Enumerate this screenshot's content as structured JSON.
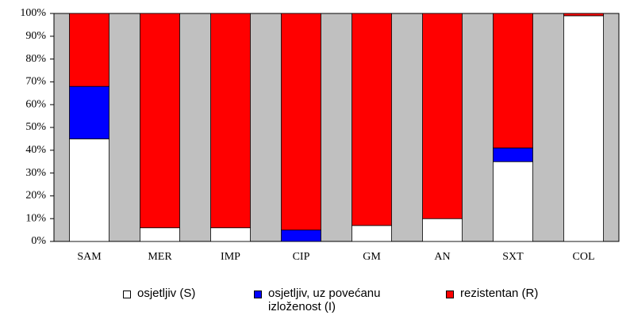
{
  "chart_data": {
    "type": "stacked_bar",
    "categories": [
      "SAM",
      "MER",
      "IMP",
      "CIP",
      "GM",
      "AN",
      "SXT",
      "COL"
    ],
    "series": [
      {
        "name": "osjetljiv (S)",
        "color": "#ffffff",
        "values": [
          45,
          6,
          6,
          0,
          7,
          10,
          35,
          99
        ]
      },
      {
        "name": "osjetljiv, uz povećanu izloženost (I)",
        "color": "#0000ff",
        "values": [
          23,
          0,
          0,
          5,
          0,
          0,
          6,
          0
        ]
      },
      {
        "name": "rezistentan (R)",
        "color": "#ff0000",
        "values": [
          32,
          94,
          94,
          95,
          93,
          90,
          59,
          1
        ]
      }
    ],
    "ylim": [
      0,
      100
    ],
    "yticks": [
      {
        "value": 0,
        "label": "0%"
      },
      {
        "value": 10,
        "label": "10%"
      },
      {
        "value": 20,
        "label": "20%"
      },
      {
        "value": 30,
        "label": "30%"
      },
      {
        "value": 40,
        "label": "40%"
      },
      {
        "value": 50,
        "label": "50%"
      },
      {
        "value": 60,
        "label": "60%"
      },
      {
        "value": 70,
        "label": "70%"
      },
      {
        "value": 80,
        "label": "80%"
      },
      {
        "value": 90,
        "label": "90%"
      },
      {
        "value": 100,
        "label": "100%"
      }
    ],
    "legend": "bottom"
  }
}
